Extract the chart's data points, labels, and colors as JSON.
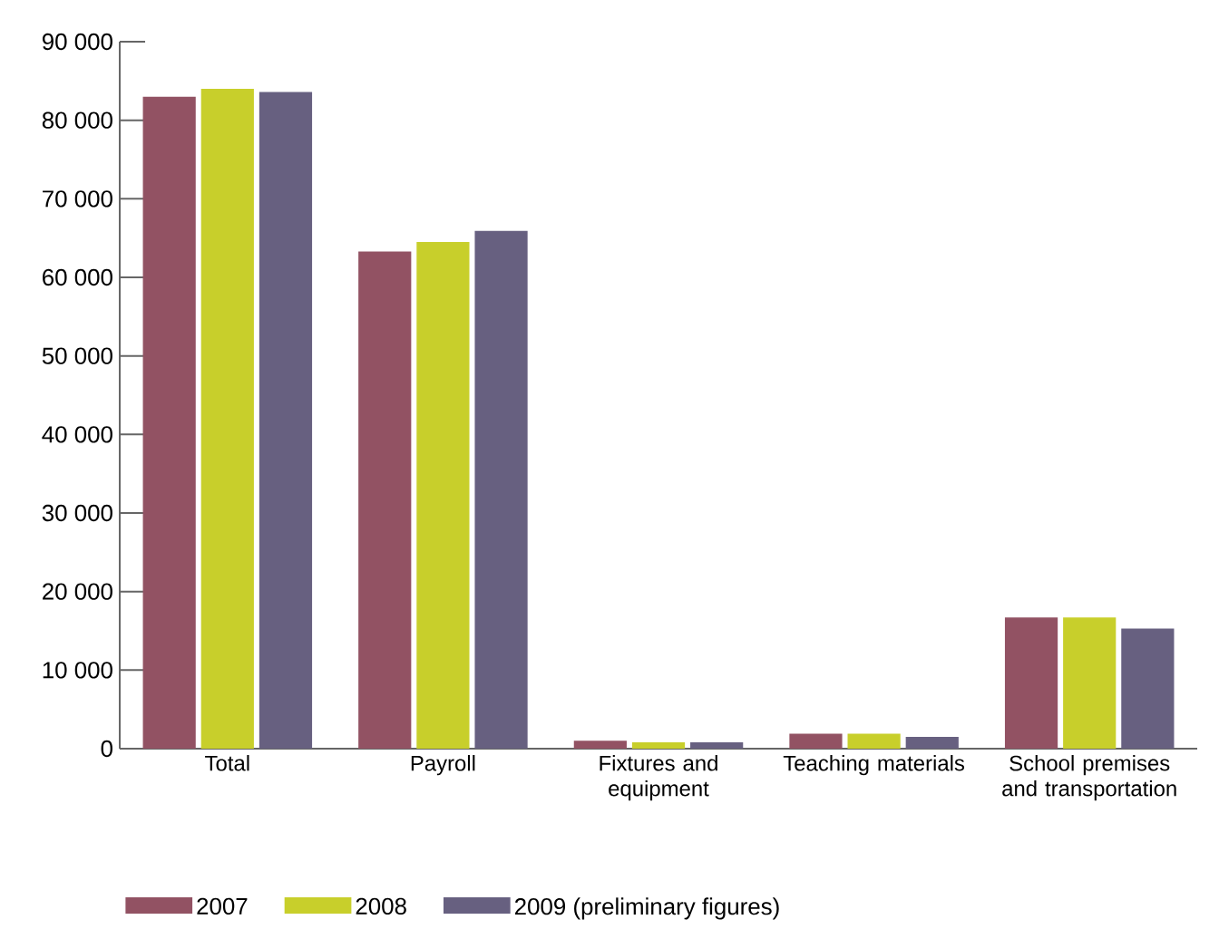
{
  "chart_data": {
    "type": "bar",
    "categories": [
      "Total",
      "Payroll",
      "Fixtures and equipment",
      "Teaching materials",
      "School premises and transportation"
    ],
    "series": [
      {
        "name": "2007",
        "color": "#925263",
        "values": [
          83000,
          63300,
          1000,
          1900,
          16700
        ]
      },
      {
        "name": "2008",
        "color": "#c8cf2b",
        "values": [
          84000,
          64500,
          800,
          1900,
          16700
        ]
      },
      {
        "name": "2009 (preliminary figures)",
        "color": "#676080",
        "values": [
          83600,
          65900,
          800,
          1500,
          15300
        ]
      }
    ],
    "ylim": [
      0,
      90000
    ],
    "yticks": [
      {
        "value": 0,
        "label": "0"
      },
      {
        "value": 10000,
        "label": "10 000"
      },
      {
        "value": 20000,
        "label": "20 000"
      },
      {
        "value": 30000,
        "label": "30 000"
      },
      {
        "value": 40000,
        "label": "40 000"
      },
      {
        "value": 50000,
        "label": "50 000"
      },
      {
        "value": 60000,
        "label": "60 000"
      },
      {
        "value": 70000,
        "label": "70 000"
      },
      {
        "value": 80000,
        "label": "80 000"
      },
      {
        "value": 90000,
        "label": "90 000"
      }
    ],
    "grid": false,
    "legend": "bottom"
  }
}
